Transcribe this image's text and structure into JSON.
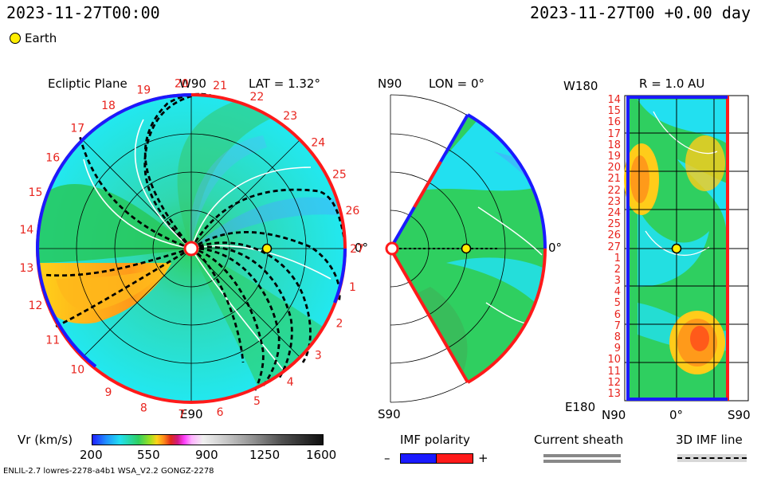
{
  "header": {
    "left_datetime": "2023-11-27T00:00",
    "right_datetime": "2023-11-27T00 +0.00 day",
    "legend_earth": "Earth"
  },
  "panels": {
    "ecliptic": {
      "title": "Ecliptic Plane",
      "top_label": "W90",
      "bottom_label": "E90",
      "right_label": "0°",
      "lat_label": "LAT = 1.32°",
      "carrington_numbers": [
        "1",
        "2",
        "3",
        "4",
        "5",
        "6",
        "7",
        "8",
        "9",
        "10",
        "11",
        "12",
        "13",
        "14",
        "15",
        "16",
        "17",
        "18",
        "19",
        "20",
        "21",
        "22",
        "23",
        "24",
        "25",
        "26",
        "27"
      ]
    },
    "meridional": {
      "top_label": "N90",
      "bottom_label": "S90",
      "lon_label": "LON = 0°",
      "right_label": "0°"
    },
    "sphere": {
      "title": "R = 1.0 AU",
      "corner_top": "W180",
      "corner_bottom": "E180",
      "x_labels": [
        "N90",
        "0°",
        "S90"
      ],
      "y_labels": [
        "14",
        "15",
        "16",
        "17",
        "18",
        "19",
        "20",
        "21",
        "22",
        "23",
        "24",
        "25",
        "26",
        "27",
        "1",
        "2",
        "3",
        "4",
        "5",
        "6",
        "7",
        "8",
        "9",
        "10",
        "11",
        "12",
        "13"
      ]
    }
  },
  "colorbar": {
    "label": "Vr (km/s)",
    "ticks": [
      "200",
      "550",
      "900",
      "1250",
      "1600"
    ]
  },
  "imf_polarity": {
    "title": "IMF polarity",
    "minus": "–",
    "plus": "+"
  },
  "current_sheath": {
    "title": "Current sheath"
  },
  "imf_line": {
    "title": "3D IMF line"
  },
  "footer": {
    "model": "ENLIL-2.7 lowres-2278-a4b1 WSA_V2.2 GONGZ-2278"
  },
  "colors": {
    "positive_polarity": "#ff1a1a",
    "negative_polarity": "#1a1aff",
    "earth": "#ffee00",
    "slow_wind": "#22e0f0",
    "medium_wind": "#2fcf60",
    "fast_wind": "#ffcc00"
  }
}
